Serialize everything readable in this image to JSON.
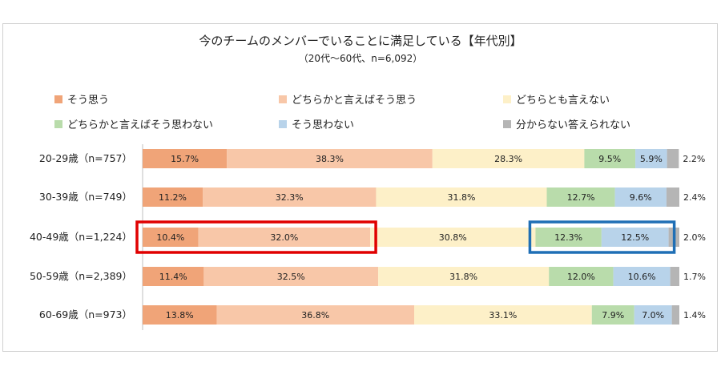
{
  "chart_data": {
    "type": "bar",
    "orientation": "horizontal-stacked-100",
    "title": "今のチームのメンバーでいることに満足している【年代別】",
    "subtitle": "（20代～60代、n=6,092）",
    "categories": [
      "20-29歳（n=757）",
      "30-39歳（n=749）",
      "40-49歳（n=1,224）",
      "50-59歳（n=2,389）",
      "60-69歳（n=973）"
    ],
    "series": [
      {
        "name": "そう思う",
        "color": "#f0a478",
        "values": [
          15.7,
          11.2,
          10.4,
          11.4,
          13.8
        ]
      },
      {
        "name": "どちらかと言えばそう思う",
        "color": "#f8c7a8",
        "values": [
          38.3,
          32.3,
          32.0,
          32.5,
          36.8
        ]
      },
      {
        "name": "どちらとも言えない",
        "color": "#fdf0c8",
        "values": [
          28.3,
          31.8,
          30.8,
          31.8,
          33.1
        ]
      },
      {
        "name": "どちらかと言えばそう思わない",
        "color": "#b9dcab",
        "values": [
          9.5,
          12.7,
          12.3,
          12.0,
          7.9
        ]
      },
      {
        "name": "そう思わない",
        "color": "#b8d3ea",
        "values": [
          5.9,
          9.6,
          12.5,
          10.6,
          7.0
        ]
      },
      {
        "name": "分からない答えられない",
        "color": "#b5b5b5",
        "values": [
          2.2,
          2.4,
          2.0,
          1.7,
          1.4
        ]
      }
    ],
    "value_labels": [
      [
        "15.7%",
        "38.3%",
        "28.3%",
        "9.5%",
        "5.9%",
        "2.2%"
      ],
      [
        "11.2%",
        "32.3%",
        "31.8%",
        "12.7%",
        "9.6%",
        "2.4%"
      ],
      [
        "10.4%",
        "32.0%",
        "30.8%",
        "12.3%",
        "12.5%",
        "2.0%"
      ],
      [
        "11.4%",
        "32.5%",
        "31.8%",
        "12.0%",
        "10.6%",
        "1.7%"
      ],
      [
        "13.8%",
        "36.8%",
        "33.1%",
        "7.9%",
        "7.0%",
        "1.4%"
      ]
    ],
    "xlim": [
      0,
      100
    ],
    "legend_position": "top",
    "highlights": [
      {
        "category_index": 2,
        "series": [
          "そう思う",
          "どちらかと言えばそう思う"
        ],
        "color": "#e00000"
      },
      {
        "category_index": 2,
        "series": [
          "どちらかと言えばそう思わない",
          "そう思わない"
        ],
        "color": "#1f6fb5"
      }
    ]
  }
}
